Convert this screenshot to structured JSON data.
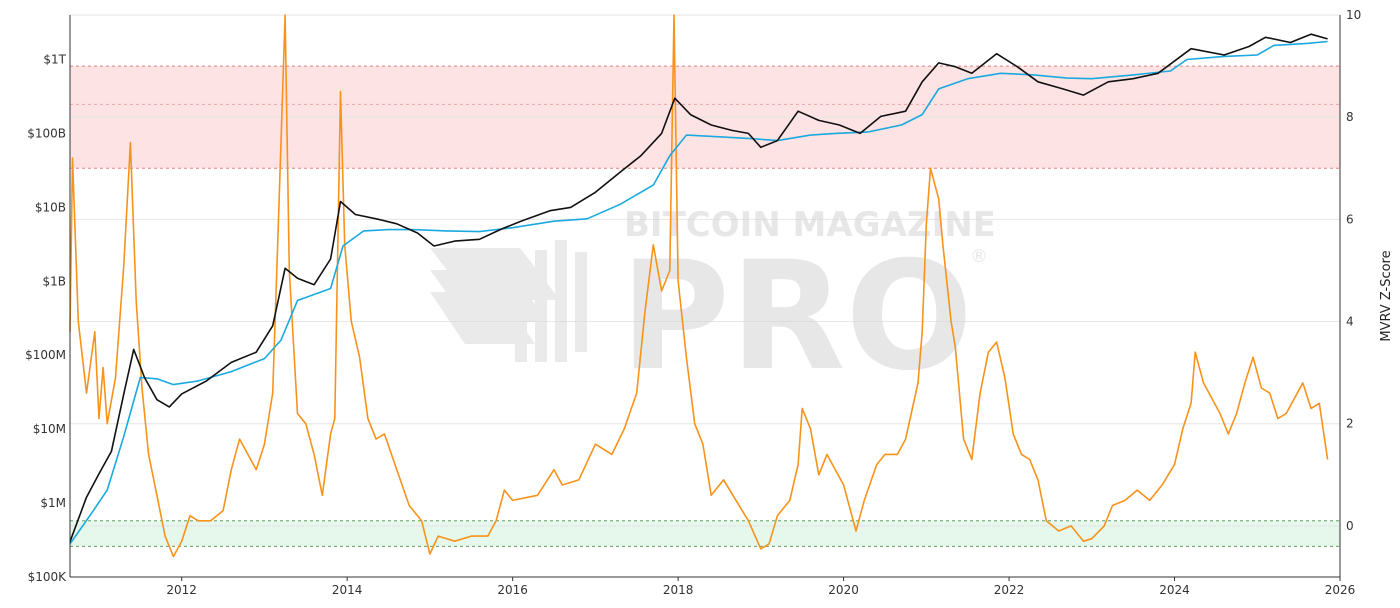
{
  "chart_data": {
    "type": "line",
    "xlim": [
      2010.65,
      2026.0
    ],
    "left_axis": {
      "scale": "log",
      "range": [
        100000,
        4000000000000
      ],
      "ticks": [
        {
          "value": 100000,
          "label": "$100K"
        },
        {
          "value": 1000000,
          "label": "$1M"
        },
        {
          "value": 10000000,
          "label": "$10M"
        },
        {
          "value": 100000000,
          "label": "$100M"
        },
        {
          "value": 1000000000,
          "label": "$1B"
        },
        {
          "value": 10000000000,
          "label": "$10B"
        },
        {
          "value": 100000000000,
          "label": "$100B"
        },
        {
          "value": 1000000000000,
          "label": "$1T"
        }
      ]
    },
    "right_axis": {
      "scale": "linear",
      "range": [
        -1.0,
        10.0
      ],
      "label": "MVRV Z-Score",
      "ticks": [
        {
          "value": 0,
          "label": "0"
        },
        {
          "value": 2,
          "label": "2"
        },
        {
          "value": 4,
          "label": "4"
        },
        {
          "value": 6,
          "label": "6"
        },
        {
          "value": 8,
          "label": "8"
        },
        {
          "value": 10,
          "label": "10"
        }
      ]
    },
    "x_ticks": [
      {
        "value": 2012,
        "label": "2012"
      },
      {
        "value": 2014,
        "label": "2014"
      },
      {
        "value": 2016,
        "label": "2016"
      },
      {
        "value": 2018,
        "label": "2018"
      },
      {
        "value": 2020,
        "label": "2020"
      },
      {
        "value": 2022,
        "label": "2022"
      },
      {
        "value": 2024,
        "label": "2024"
      },
      {
        "value": 2026,
        "label": "2026"
      }
    ],
    "bands": [
      {
        "axis": "right",
        "from": 7.0,
        "to": 9.0,
        "color": "#fde3e3",
        "edge": "#e08080",
        "mid": 8.25
      },
      {
        "axis": "right",
        "from": -0.4,
        "to": 0.1,
        "color": "#e6f7ec",
        "edge": "#60a060"
      }
    ],
    "series": [
      {
        "color": "#111111",
        "axis": "left",
        "points": [
          [
            2010.65,
            300000
          ],
          [
            2010.85,
            1200000
          ],
          [
            2011.0,
            2500000
          ],
          [
            2011.15,
            5000000
          ],
          [
            2011.3,
            30000000
          ],
          [
            2011.42,
            120000000
          ],
          [
            2011.55,
            50000000
          ],
          [
            2011.7,
            25000000
          ],
          [
            2011.85,
            20000000
          ],
          [
            2012.0,
            30000000
          ],
          [
            2012.3,
            45000000
          ],
          [
            2012.6,
            80000000
          ],
          [
            2012.9,
            110000000
          ],
          [
            2013.1,
            250000000
          ],
          [
            2013.25,
            1500000000
          ],
          [
            2013.4,
            1100000000
          ],
          [
            2013.6,
            900000000
          ],
          [
            2013.8,
            2000000000
          ],
          [
            2013.92,
            12000000000
          ],
          [
            2014.1,
            8000000000
          ],
          [
            2014.35,
            7000000000
          ],
          [
            2014.6,
            6000000000
          ],
          [
            2014.85,
            4500000000
          ],
          [
            2015.05,
            3000000000
          ],
          [
            2015.3,
            3500000000
          ],
          [
            2015.6,
            3700000000
          ],
          [
            2015.85,
            5000000000
          ],
          [
            2016.1,
            6500000000
          ],
          [
            2016.45,
            9000000000
          ],
          [
            2016.7,
            10000000000
          ],
          [
            2017.0,
            16000000000
          ],
          [
            2017.3,
            30000000000
          ],
          [
            2017.55,
            50000000000
          ],
          [
            2017.8,
            100000000000
          ],
          [
            2017.96,
            300000000000
          ],
          [
            2018.15,
            180000000000
          ],
          [
            2018.4,
            130000000000
          ],
          [
            2018.65,
            110000000000
          ],
          [
            2018.85,
            100000000000
          ],
          [
            2019.0,
            65000000000
          ],
          [
            2019.2,
            80000000000
          ],
          [
            2019.45,
            200000000000
          ],
          [
            2019.7,
            150000000000
          ],
          [
            2019.95,
            130000000000
          ],
          [
            2020.2,
            100000000000
          ],
          [
            2020.45,
            170000000000
          ],
          [
            2020.75,
            200000000000
          ],
          [
            2020.95,
            500000000000
          ],
          [
            2021.15,
            900000000000
          ],
          [
            2021.35,
            800000000000
          ],
          [
            2021.55,
            650000000000
          ],
          [
            2021.85,
            1200000000000
          ],
          [
            2022.1,
            800000000000
          ],
          [
            2022.35,
            500000000000
          ],
          [
            2022.65,
            400000000000
          ],
          [
            2022.9,
            330000000000
          ],
          [
            2023.2,
            500000000000
          ],
          [
            2023.5,
            550000000000
          ],
          [
            2023.8,
            650000000000
          ],
          [
            2024.2,
            1400000000000
          ],
          [
            2024.6,
            1150000000000
          ],
          [
            2024.9,
            1500000000000
          ],
          [
            2025.1,
            2000000000000
          ],
          [
            2025.4,
            1700000000000
          ],
          [
            2025.65,
            2200000000000
          ],
          [
            2025.85,
            1900000000000
          ]
        ]
      },
      {
        "color": "#1aa9e0",
        "axis": "left",
        "points": [
          [
            2010.65,
            280000
          ],
          [
            2010.9,
            700000
          ],
          [
            2011.1,
            1500000
          ],
          [
            2011.3,
            8000000
          ],
          [
            2011.5,
            50000000
          ],
          [
            2011.7,
            48000000
          ],
          [
            2011.9,
            40000000
          ],
          [
            2012.2,
            45000000
          ],
          [
            2012.6,
            60000000
          ],
          [
            2013.0,
            90000000
          ],
          [
            2013.2,
            160000000
          ],
          [
            2013.4,
            550000000
          ],
          [
            2013.8,
            800000000
          ],
          [
            2013.95,
            3000000000
          ],
          [
            2014.2,
            4800000000
          ],
          [
            2014.5,
            5000000000
          ],
          [
            2014.8,
            5000000000
          ],
          [
            2015.2,
            4800000000
          ],
          [
            2015.6,
            4700000000
          ],
          [
            2016.0,
            5300000000
          ],
          [
            2016.5,
            6500000000
          ],
          [
            2016.9,
            7000000000
          ],
          [
            2017.3,
            11000000000
          ],
          [
            2017.7,
            20000000000
          ],
          [
            2017.9,
            50000000000
          ],
          [
            2018.1,
            95000000000
          ],
          [
            2018.5,
            90000000000
          ],
          [
            2018.9,
            85000000000
          ],
          [
            2019.2,
            80000000000
          ],
          [
            2019.6,
            95000000000
          ],
          [
            2019.9,
            100000000000
          ],
          [
            2020.3,
            105000000000
          ],
          [
            2020.7,
            130000000000
          ],
          [
            2020.95,
            180000000000
          ],
          [
            2021.15,
            400000000000
          ],
          [
            2021.5,
            550000000000
          ],
          [
            2021.9,
            650000000000
          ],
          [
            2022.3,
            620000000000
          ],
          [
            2022.7,
            560000000000
          ],
          [
            2023.0,
            550000000000
          ],
          [
            2023.5,
            620000000000
          ],
          [
            2023.95,
            700000000000
          ],
          [
            2024.15,
            1000000000000
          ],
          [
            2024.6,
            1100000000000
          ],
          [
            2025.0,
            1150000000000
          ],
          [
            2025.2,
            1550000000000
          ],
          [
            2025.6,
            1650000000000
          ],
          [
            2025.85,
            1750000000000
          ]
        ]
      },
      {
        "color": "#f7931a",
        "axis": "right",
        "points": [
          [
            2010.65,
            3.8
          ],
          [
            2010.68,
            7.2
          ],
          [
            2010.75,
            4.0
          ],
          [
            2010.85,
            2.6
          ],
          [
            2010.95,
            3.8
          ],
          [
            2011.0,
            2.1
          ],
          [
            2011.05,
            3.1
          ],
          [
            2011.1,
            2.0
          ],
          [
            2011.2,
            2.9
          ],
          [
            2011.3,
            5.1
          ],
          [
            2011.38,
            7.5
          ],
          [
            2011.45,
            4.4
          ],
          [
            2011.52,
            2.7
          ],
          [
            2011.6,
            1.4
          ],
          [
            2011.7,
            0.6
          ],
          [
            2011.8,
            -0.2
          ],
          [
            2011.9,
            -0.6
          ],
          [
            2012.0,
            -0.3
          ],
          [
            2012.1,
            0.2
          ],
          [
            2012.2,
            0.1
          ],
          [
            2012.35,
            0.1
          ],
          [
            2012.5,
            0.3
          ],
          [
            2012.6,
            1.1
          ],
          [
            2012.7,
            1.7
          ],
          [
            2012.8,
            1.4
          ],
          [
            2012.9,
            1.1
          ],
          [
            2013.0,
            1.6
          ],
          [
            2013.1,
            2.6
          ],
          [
            2013.17,
            6.0
          ],
          [
            2013.25,
            10.0
          ],
          [
            2013.3,
            5.0
          ],
          [
            2013.4,
            2.2
          ],
          [
            2013.5,
            2.0
          ],
          [
            2013.6,
            1.4
          ],
          [
            2013.7,
            0.6
          ],
          [
            2013.8,
            1.8
          ],
          [
            2013.85,
            2.1
          ],
          [
            2013.92,
            8.5
          ],
          [
            2013.97,
            5.5
          ],
          [
            2014.05,
            4.0
          ],
          [
            2014.15,
            3.3
          ],
          [
            2014.25,
            2.1
          ],
          [
            2014.35,
            1.7
          ],
          [
            2014.45,
            1.8
          ],
          [
            2014.6,
            1.1
          ],
          [
            2014.75,
            0.4
          ],
          [
            2014.9,
            0.1
          ],
          [
            2015.0,
            -0.55
          ],
          [
            2015.1,
            -0.2
          ],
          [
            2015.3,
            -0.3
          ],
          [
            2015.5,
            -0.2
          ],
          [
            2015.7,
            -0.2
          ],
          [
            2015.8,
            0.1
          ],
          [
            2015.9,
            0.7
          ],
          [
            2016.0,
            0.5
          ],
          [
            2016.3,
            0.6
          ],
          [
            2016.5,
            1.1
          ],
          [
            2016.6,
            0.8
          ],
          [
            2016.8,
            0.9
          ],
          [
            2017.0,
            1.6
          ],
          [
            2017.2,
            1.4
          ],
          [
            2017.35,
            1.9
          ],
          [
            2017.5,
            2.6
          ],
          [
            2017.6,
            4.2
          ],
          [
            2017.7,
            5.5
          ],
          [
            2017.8,
            4.6
          ],
          [
            2017.9,
            5.0
          ],
          [
            2017.95,
            10.0
          ],
          [
            2018.0,
            4.8
          ],
          [
            2018.1,
            3.3
          ],
          [
            2018.2,
            2.0
          ],
          [
            2018.3,
            1.6
          ],
          [
            2018.4,
            0.6
          ],
          [
            2018.55,
            0.9
          ],
          [
            2018.7,
            0.5
          ],
          [
            2018.85,
            0.1
          ],
          [
            2019.0,
            -0.45
          ],
          [
            2019.1,
            -0.35
          ],
          [
            2019.2,
            0.2
          ],
          [
            2019.35,
            0.5
          ],
          [
            2019.45,
            1.2
          ],
          [
            2019.5,
            2.3
          ],
          [
            2019.6,
            1.9
          ],
          [
            2019.7,
            1.0
          ],
          [
            2019.8,
            1.4
          ],
          [
            2019.9,
            1.1
          ],
          [
            2020.0,
            0.8
          ],
          [
            2020.15,
            -0.1
          ],
          [
            2020.25,
            0.5
          ],
          [
            2020.4,
            1.2
          ],
          [
            2020.5,
            1.4
          ],
          [
            2020.65,
            1.4
          ],
          [
            2020.75,
            1.7
          ],
          [
            2020.9,
            2.8
          ],
          [
            2020.95,
            3.8
          ],
          [
            2021.0,
            5.9
          ],
          [
            2021.05,
            7.0
          ],
          [
            2021.15,
            6.4
          ],
          [
            2021.2,
            5.5
          ],
          [
            2021.3,
            4.0
          ],
          [
            2021.35,
            3.5
          ],
          [
            2021.45,
            1.7
          ],
          [
            2021.55,
            1.3
          ],
          [
            2021.65,
            2.6
          ],
          [
            2021.75,
            3.4
          ],
          [
            2021.85,
            3.6
          ],
          [
            2021.95,
            2.9
          ],
          [
            2022.05,
            1.8
          ],
          [
            2022.15,
            1.4
          ],
          [
            2022.25,
            1.3
          ],
          [
            2022.35,
            0.9
          ],
          [
            2022.45,
            0.1
          ],
          [
            2022.6,
            -0.1
          ],
          [
            2022.75,
            0.0
          ],
          [
            2022.9,
            -0.3
          ],
          [
            2023.0,
            -0.25
          ],
          [
            2023.15,
            0.0
          ],
          [
            2023.25,
            0.4
          ],
          [
            2023.4,
            0.5
          ],
          [
            2023.55,
            0.7
          ],
          [
            2023.7,
            0.5
          ],
          [
            2023.85,
            0.8
          ],
          [
            2024.0,
            1.2
          ],
          [
            2024.1,
            1.9
          ],
          [
            2024.2,
            2.4
          ],
          [
            2024.25,
            3.4
          ],
          [
            2024.35,
            2.8
          ],
          [
            2024.45,
            2.5
          ],
          [
            2024.55,
            2.2
          ],
          [
            2024.65,
            1.8
          ],
          [
            2024.75,
            2.2
          ],
          [
            2024.85,
            2.8
          ],
          [
            2024.95,
            3.3
          ],
          [
            2025.05,
            2.7
          ],
          [
            2025.15,
            2.6
          ],
          [
            2025.25,
            2.1
          ],
          [
            2025.35,
            2.2
          ],
          [
            2025.45,
            2.5
          ],
          [
            2025.55,
            2.8
          ],
          [
            2025.65,
            2.3
          ],
          [
            2025.75,
            2.4
          ],
          [
            2025.85,
            1.3
          ]
        ]
      }
    ]
  },
  "watermark": {
    "line1": "BITCOIN MAGAZINE",
    "line2": "PRO",
    "reg": "®"
  }
}
